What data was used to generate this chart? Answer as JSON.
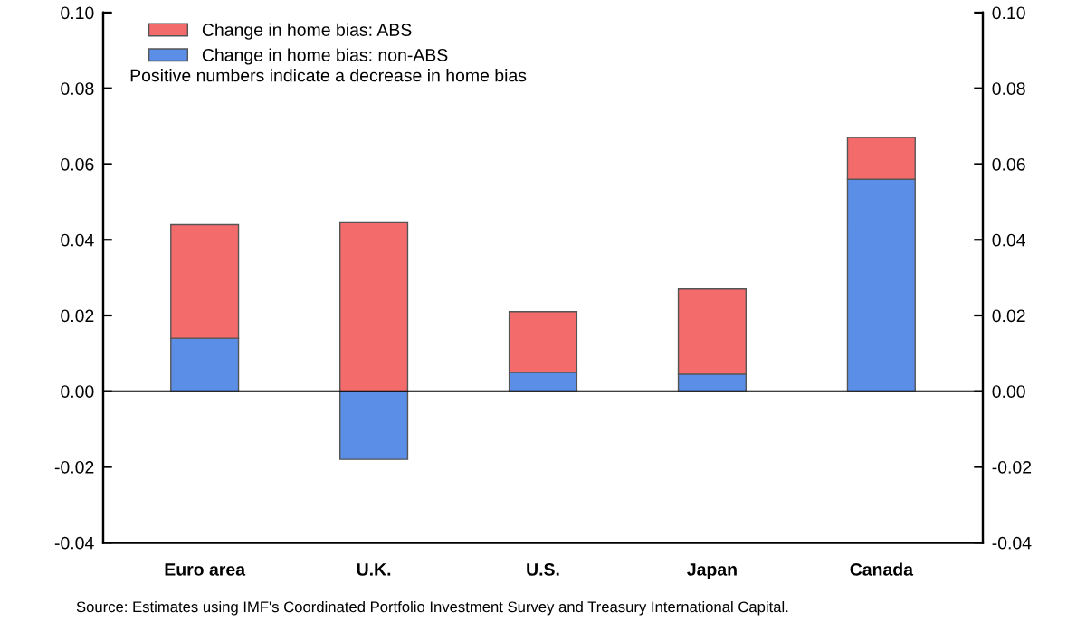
{
  "chart_data": {
    "type": "bar",
    "stacked": true,
    "categories": [
      "Euro area",
      "U.K.",
      "U.S.",
      "Japan",
      "Canada"
    ],
    "series": [
      {
        "name": "Change in home bias: non-ABS",
        "color": "#5b8ee6",
        "values": [
          0.014,
          -0.018,
          0.005,
          0.0045,
          0.056
        ]
      },
      {
        "name": "Change in home bias: ABS",
        "color": "#f46b6b",
        "values": [
          0.03,
          0.0445,
          0.016,
          0.0225,
          0.011
        ]
      }
    ],
    "ylim": [
      -0.04,
      0.1
    ],
    "yticks": [
      {
        "value": -0.04,
        "label": "-0.04"
      },
      {
        "value": -0.02,
        "label": "-0.02"
      },
      {
        "value": 0,
        "label": "0.00"
      },
      {
        "value": 0.02,
        "label": "0.02"
      },
      {
        "value": 0.04,
        "label": "0.04"
      },
      {
        "value": 0.06,
        "label": "0.06"
      },
      {
        "value": 0.08,
        "label": "0.08"
      },
      {
        "value": 0.1,
        "label": "0.10"
      }
    ],
    "y2lim": [
      -0.04,
      0.1
    ],
    "y2ticks": [
      {
        "value": -0.04,
        "label": "-0.04"
      },
      {
        "value": -0.02,
        "label": "-0.02"
      },
      {
        "value": 0,
        "label": "0.00"
      },
      {
        "value": 0.02,
        "label": "0.02"
      },
      {
        "value": 0.04,
        "label": "0.04"
      },
      {
        "value": 0.06,
        "label": "0.06"
      },
      {
        "value": 0.08,
        "label": "0.08"
      },
      {
        "value": 0.1,
        "label": "0.10"
      }
    ],
    "legend": "top left",
    "annotations": [
      "Positive numbers indicate a decrease in home bias",
      "Source: Estimates using IMF's Coordinated Portfolio Investment Survey and Treasury International Capital."
    ]
  }
}
